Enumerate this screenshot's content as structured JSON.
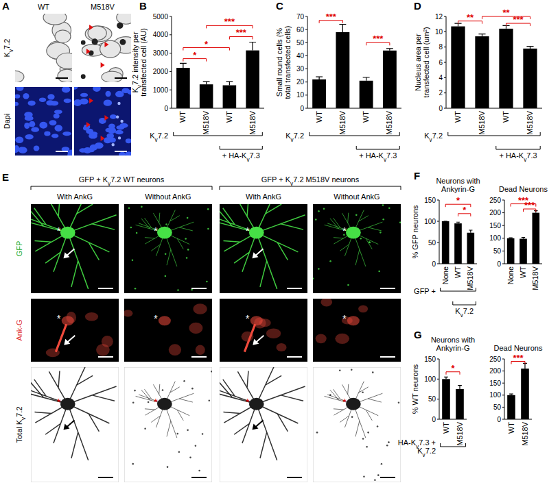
{
  "images": {
    "A": {
      "panel_label": "A",
      "columns": [
        "WT",
        "M518V"
      ],
      "rows": [
        "Kv7.2",
        "Dapi"
      ]
    },
    "E": {
      "panel_label": "E",
      "groups": [
        "GFP + Kv7.2 WT neurons",
        "GFP + Kv7.2 M518V neurons"
      ],
      "columns": [
        "With AnkG",
        "Without AnkG",
        "With AnkG",
        "Without AnkG"
      ],
      "rows": [
        "GFP",
        "Ank-G",
        "Total Kv7.2"
      ],
      "soma_marker": "*"
    }
  },
  "chart_data": [
    {
      "type": "bar",
      "panel_label": "B",
      "y_label": "Kv7.2 intensity per transfected cell (AU)",
      "categories": [
        "WT",
        "M518V",
        "WT",
        "M518V"
      ],
      "values": [
        2200,
        1300,
        1250,
        3150
      ],
      "errors": [
        250,
        150,
        200,
        450
      ],
      "color": "#000000",
      "ylim": [
        0,
        5000
      ],
      "yticks": [
        0,
        1000,
        2000,
        3000,
        4000,
        5000
      ],
      "annotations": [
        {
          "text": "*",
          "from": 0,
          "to": 1,
          "y": 2700
        },
        {
          "text": "*",
          "from": 0,
          "to": 2,
          "y": 3300
        },
        {
          "text": "***",
          "from": 2,
          "to": 3,
          "y": 3900
        },
        {
          "text": "***",
          "from": 1,
          "to": 3,
          "y": 4500
        }
      ],
      "groups": [
        {
          "label": "Kv7.2",
          "from": 0,
          "to": 3
        },
        {
          "label": "+ HA-Kv7.3",
          "from": 2,
          "to": 3
        }
      ]
    },
    {
      "type": "bar",
      "panel_label": "C",
      "y_label": "Small round cells (% total transfected cells)",
      "categories": [
        "WT",
        "M518V",
        "WT",
        "M518V"
      ],
      "values": [
        22,
        58,
        21,
        44
      ],
      "errors": [
        2,
        6,
        2.5,
        1.5
      ],
      "color": "#000000",
      "ylim": [
        0,
        70
      ],
      "yticks": [
        0,
        10,
        20,
        30,
        40,
        50,
        60,
        70
      ],
      "annotations": [
        {
          "text": "***",
          "from": 0,
          "to": 1,
          "y": 67
        },
        {
          "text": "***",
          "from": 2,
          "to": 3,
          "y": 50
        }
      ],
      "groups": [
        {
          "label": "Kv7.2",
          "from": 0,
          "to": 3
        },
        {
          "label": "+ HA-Kv7.3",
          "from": 2,
          "to": 3
        }
      ]
    },
    {
      "type": "bar",
      "panel_label": "D",
      "y_label": "Nucleus area per transfected cell (um²)",
      "categories": [
        "WT",
        "M518V",
        "WT",
        "M518V"
      ],
      "values": [
        10.7,
        9.4,
        10.4,
        7.8
      ],
      "errors": [
        0.4,
        0.3,
        0.4,
        0.3
      ],
      "color": "#000000",
      "ylim": [
        0,
        12
      ],
      "yticks": [
        0,
        2,
        4,
        6,
        8,
        10,
        12
      ],
      "annotations": [
        {
          "text": "**",
          "from": 0,
          "to": 1,
          "y": 11.4
        },
        {
          "text": "***",
          "from": 2,
          "to": 3,
          "y": 11.1
        },
        {
          "text": "**",
          "from": 1,
          "to": 3,
          "y": 12
        }
      ],
      "groups": [
        {
          "label": "Kv7.2",
          "from": 0,
          "to": 3
        },
        {
          "label": "+ HA-Kv7.3",
          "from": 2,
          "to": 3
        }
      ]
    },
    {
      "type": "bar",
      "panel_label": "F",
      "title": "Neurons with Ankyrin-G",
      "y_label": "% GFP neurons",
      "categories": [
        "None",
        "WT",
        "M518V"
      ],
      "values": [
        100,
        95,
        73
      ],
      "errors": [
        0,
        3,
        6
      ],
      "color": "#000000",
      "ylim": [
        0,
        150
      ],
      "yticks": [
        0,
        50,
        100,
        150
      ],
      "annotations": [
        {
          "text": "*",
          "from": 0,
          "to": 2,
          "y": 140
        },
        {
          "text": "*",
          "from": 1,
          "to": 2,
          "y": 118
        }
      ],
      "groups": [
        {
          "label": "GFP +",
          "from": 0,
          "to": 2
        },
        {
          "label": "Kv7.2",
          "from": 1,
          "to": 2
        }
      ]
    },
    {
      "type": "bar",
      "title": "Dead Neurons",
      "categories": [
        "None",
        "WT",
        "M518V"
      ],
      "values": [
        100,
        98,
        200
      ],
      "errors": [
        2,
        5,
        8
      ],
      "color": "#000000",
      "ylim": [
        0,
        250
      ],
      "yticks": [
        0,
        50,
        100,
        150,
        200,
        250
      ],
      "annotations": [
        {
          "text": "***",
          "from": 0,
          "to": 2,
          "y": 235
        },
        {
          "text": "***",
          "from": 1,
          "to": 2,
          "y": 215
        }
      ]
    },
    {
      "type": "bar",
      "panel_label": "G",
      "title": "Neurons with Ankyrin-G",
      "y_label": "% WT neurons",
      "categories": [
        "WT",
        "M518V"
      ],
      "values": [
        100,
        75
      ],
      "errors": [
        5,
        9
      ],
      "color": "#000000",
      "ylim": [
        0,
        150
      ],
      "yticks": [
        0,
        50,
        100,
        150
      ],
      "annotations": [
        {
          "text": "*",
          "from": 0,
          "to": 1,
          "y": 118
        }
      ],
      "groups": [
        {
          "label": "HA-Kv7.3 + Kv7.2",
          "from": 0,
          "to": 1
        }
      ]
    },
    {
      "type": "bar",
      "title": "Dead Neurons",
      "categories": [
        "WT",
        "M518V"
      ],
      "values": [
        100,
        210
      ],
      "errors": [
        5,
        22
      ],
      "color": "#000000",
      "ylim": [
        0,
        250
      ],
      "yticks": [
        0,
        50,
        100,
        150,
        200,
        250
      ],
      "annotations": [
        {
          "text": "***",
          "from": 0,
          "to": 1,
          "y": 240
        }
      ]
    }
  ]
}
